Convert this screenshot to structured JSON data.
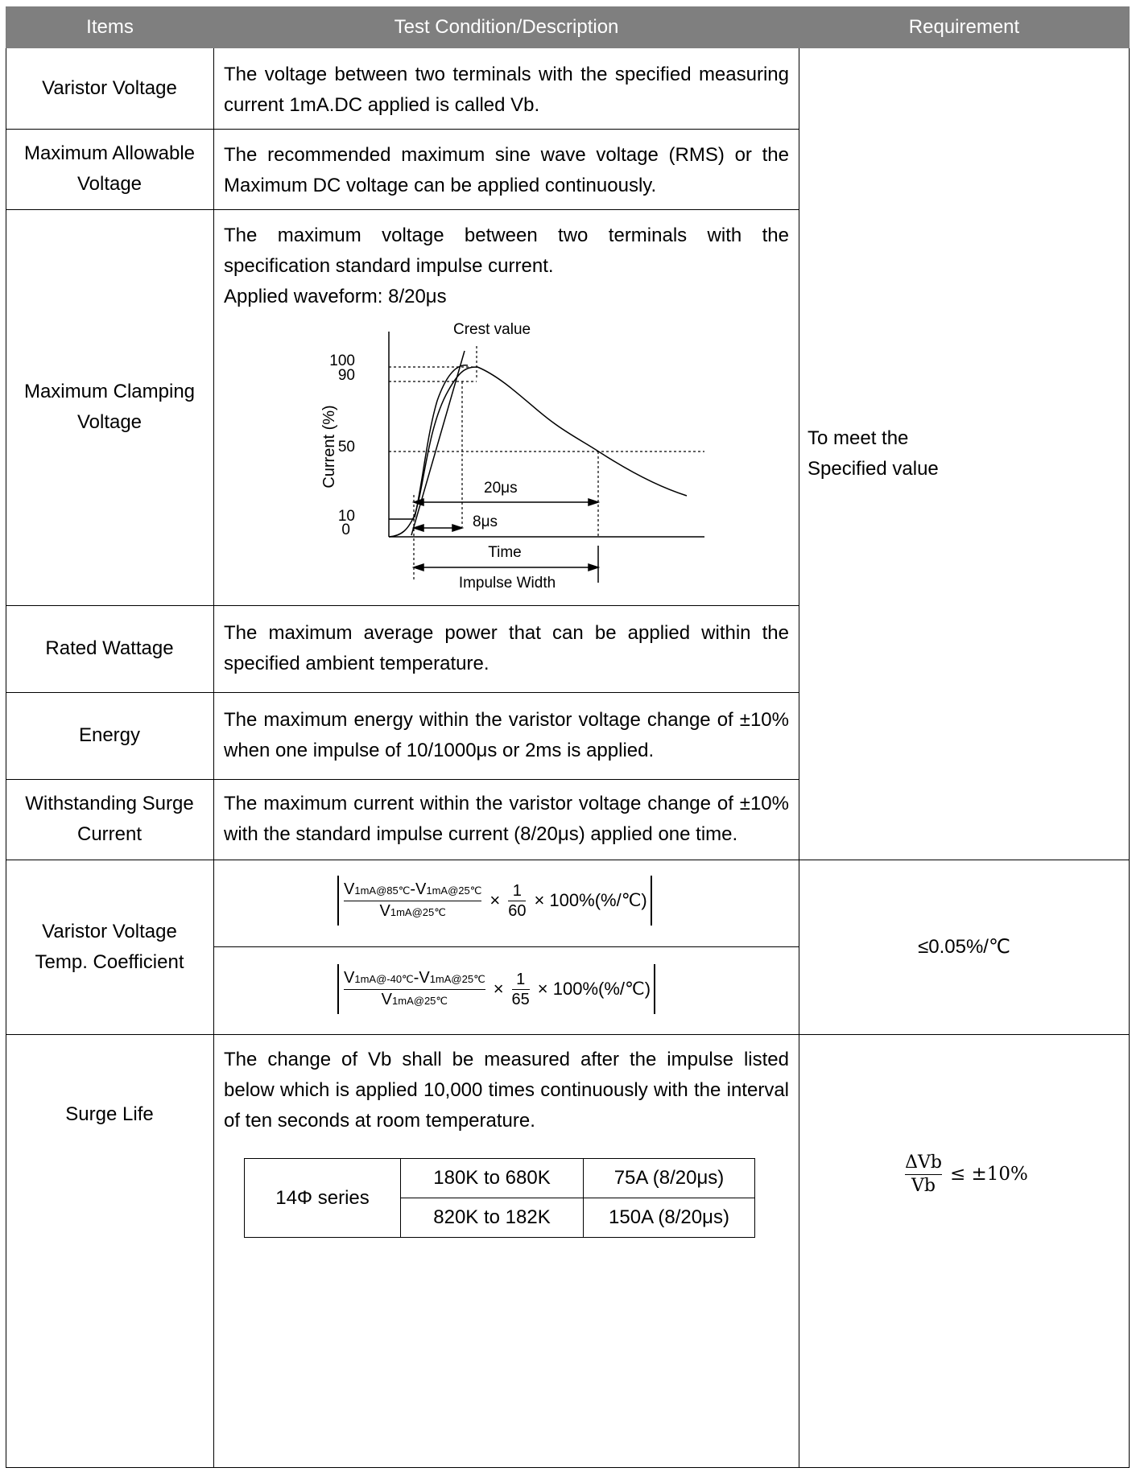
{
  "header": {
    "items": "Items",
    "description": "Test Condition/Description",
    "requirement": "Requirement"
  },
  "rows": [
    {
      "item": "Varistor Voltage",
      "description": "The voltage between two terminals with the specified measuring current 1mA.DC applied is called Vb."
    },
    {
      "item": "Maximum Allowable Voltage",
      "description": "The recommended maximum sine wave voltage (RMS) or the Maximum DC voltage can be applied continuously."
    },
    {
      "item": "Maximum Clamping Voltage",
      "description_line1": "The maximum voltage between two terminals with the specification standard impulse current.",
      "description_line2": "Applied waveform: 8/20μs"
    },
    {
      "item": "Rated Wattage",
      "description": "The maximum average power that can be applied within the specified ambient temperature."
    },
    {
      "item": "Energy",
      "description": "The maximum energy within the varistor voltage change of ±10% when one impulse of 10/1000μs or 2ms is applied."
    },
    {
      "item": "Withstanding Surge Current",
      "description": "The maximum current within the varistor voltage change of ±10% with the standard impulse current (8/20μs) applied one time."
    },
    {
      "item": "Varistor Voltage Temp. Coefficient"
    },
    {
      "item": "Surge Life",
      "description": "The change of Vb shall be measured after the impulse listed below which is applied 10,000 times continuously with the interval of ten seconds at room temperature."
    }
  ],
  "requirement_general": "To meet the Specified value",
  "requirement_temp": "≤0.05%/℃",
  "waveform": {
    "ylabel": "Current (%)",
    "ticks": [
      "100",
      "90",
      "50",
      "10",
      "0"
    ],
    "crest_label": "Crest value",
    "label_20": "20μs",
    "label_8": "8μs",
    "time_label": "Time",
    "impulse_label": "Impulse Width"
  },
  "formula1": {
    "num_a": "V",
    "num_a_sub": "1mA@85℃",
    "dash": "-",
    "num_b": "V",
    "num_b_sub": "1mA@25℃",
    "den": "V",
    "den_sub": "1mA@25℃",
    "times": "×",
    "frac_num": "1",
    "frac_den": "60",
    "tail": "× 100%(%/℃)"
  },
  "formula2": {
    "num_a": "V",
    "num_a_sub": "1mA@-40℃",
    "dash": "-",
    "num_b": "V",
    "num_b_sub": "1mA@25℃",
    "den": "V",
    "den_sub": "1mA@25℃",
    "times": "×",
    "frac_num": "1",
    "frac_den": "65",
    "tail": "× 100%(%/℃)"
  },
  "surge_table": {
    "series": "14Φ series",
    "rows": [
      {
        "range": "180K to 680K",
        "current": "75A (8/20μs)"
      },
      {
        "range": "820K to 182K",
        "current": "150A (8/20μs)"
      }
    ]
  },
  "surge_requirement": {
    "num": "ΔVb",
    "den": "Vb",
    "rel": "≤ ±10%"
  }
}
